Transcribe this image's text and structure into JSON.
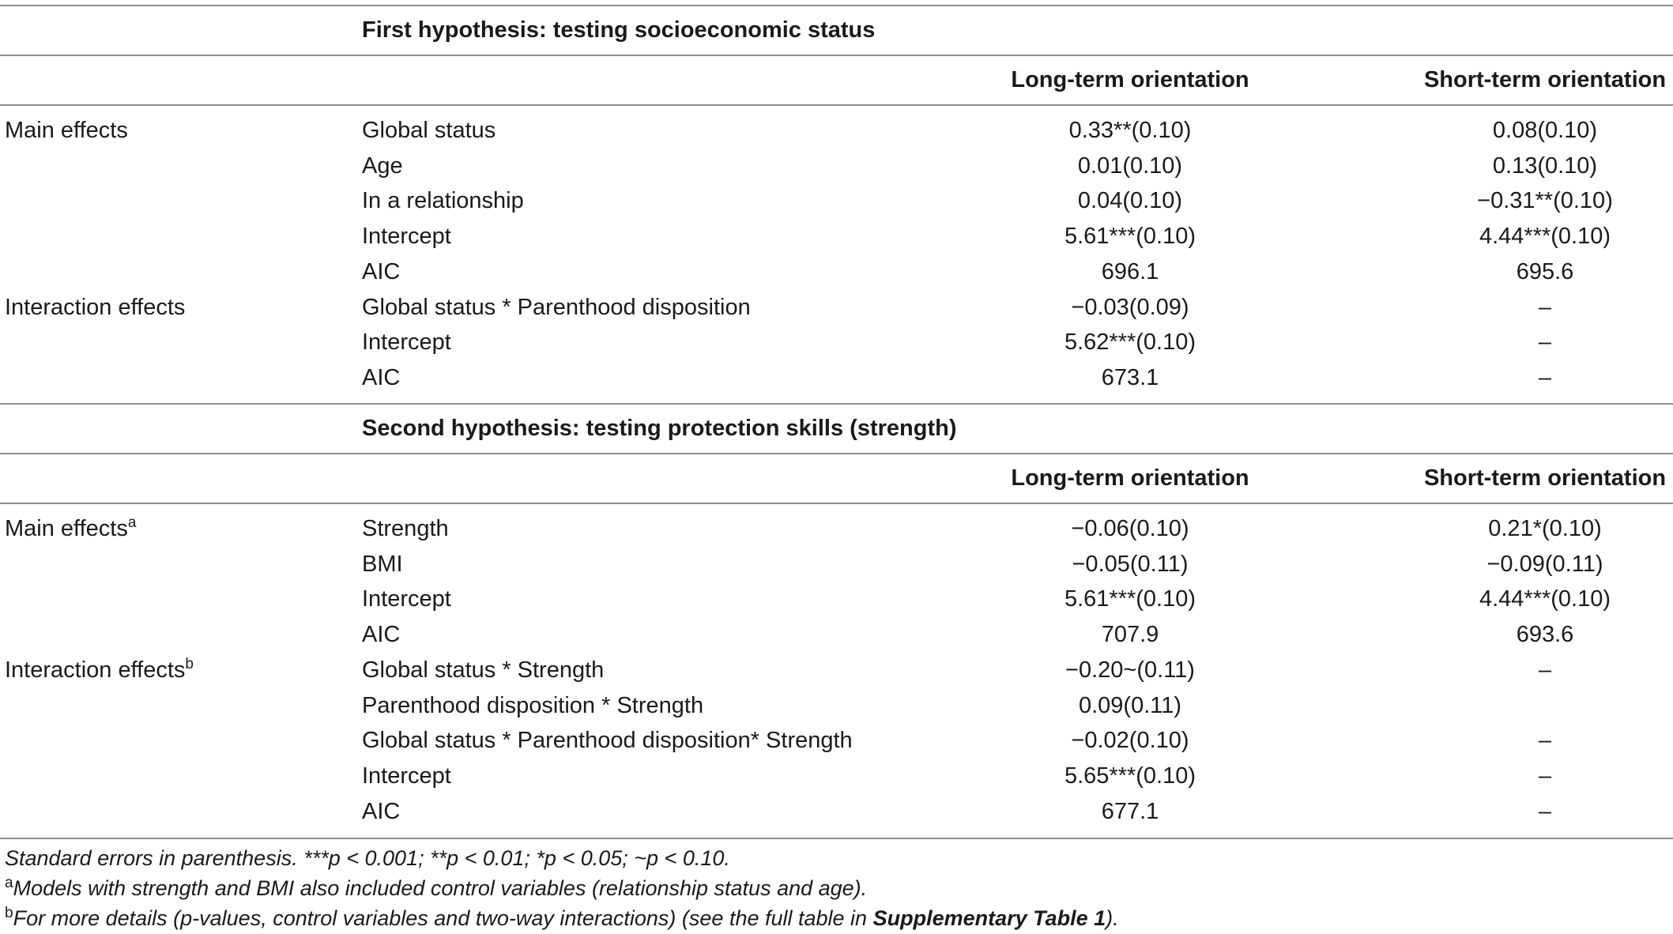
{
  "hypotheses": [
    {
      "title": "First hypothesis: testing socioeconomic status",
      "col_long": "Long-term orientation",
      "col_short": "Short-term orientation",
      "rows": [
        {
          "group": "Main effects",
          "group_sup": "",
          "term": "Global status",
          "long": "0.33**(0.10)",
          "short": "0.08(0.10)"
        },
        {
          "group": "",
          "group_sup": "",
          "term": "Age",
          "long": "0.01(0.10)",
          "short": "0.13(0.10)"
        },
        {
          "group": "",
          "group_sup": "",
          "term": "In a relationship",
          "long": "0.04(0.10)",
          "short": "−0.31**(0.10)"
        },
        {
          "group": "",
          "group_sup": "",
          "term": "Intercept",
          "long": "5.61***(0.10)",
          "short": "4.44***(0.10)"
        },
        {
          "group": "",
          "group_sup": "",
          "term": "AIC",
          "long": "696.1",
          "short": "695.6"
        },
        {
          "group": "Interaction effects",
          "group_sup": "",
          "term": "Global status * Parenthood disposition",
          "long": "−0.03(0.09)",
          "short": "–"
        },
        {
          "group": "",
          "group_sup": "",
          "term": "Intercept",
          "long": "5.62***(0.10)",
          "short": "–"
        },
        {
          "group": "",
          "group_sup": "",
          "term": "AIC",
          "long": "673.1",
          "short": "–"
        }
      ]
    },
    {
      "title": "Second hypothesis: testing protection skills (strength)",
      "col_long": "Long-term orientation",
      "col_short": "Short-term orientation",
      "rows": [
        {
          "group": "Main effects",
          "group_sup": "a",
          "term": "Strength",
          "long": "−0.06(0.10)",
          "short": "0.21*(0.10)"
        },
        {
          "group": "",
          "group_sup": "",
          "term": "BMI",
          "long": "−0.05(0.11)",
          "short": "−0.09(0.11)"
        },
        {
          "group": "",
          "group_sup": "",
          "term": "Intercept",
          "long": "5.61***(0.10)",
          "short": "4.44***(0.10)"
        },
        {
          "group": "",
          "group_sup": "",
          "term": "AIC",
          "long": "707.9",
          "short": "693.6"
        },
        {
          "group": "Interaction effects",
          "group_sup": "b",
          "term": "Global status * Strength",
          "long": "−0.20~(0.11)",
          "short": "–"
        },
        {
          "group": "",
          "group_sup": "",
          "term": "Parenthood disposition * Strength",
          "long": "0.09(0.11)",
          "short": ""
        },
        {
          "group": "",
          "group_sup": "",
          "term": "Global status * Parenthood disposition* Strength",
          "long": "−0.02(0.10)",
          "short": "–"
        },
        {
          "group": "",
          "group_sup": "",
          "term": "Intercept",
          "long": "5.65***(0.10)",
          "short": "–"
        },
        {
          "group": "",
          "group_sup": "",
          "term": "AIC",
          "long": "677.1",
          "short": "–"
        }
      ]
    }
  ],
  "footnotes": {
    "significance": "Standard errors in parenthesis. ***p < 0.001; **p < 0.01; *p < 0.05; ~p < 0.10.",
    "a_mark": "a",
    "a_text": "Models with strength and BMI also included control variables (relationship status and age).",
    "b_mark": "b",
    "b_text_before": "For more details (p-values, control variables and two-way interactions) (see the full table in ",
    "b_text_bold": "Supplementary Table 1",
    "b_text_after": ")."
  }
}
